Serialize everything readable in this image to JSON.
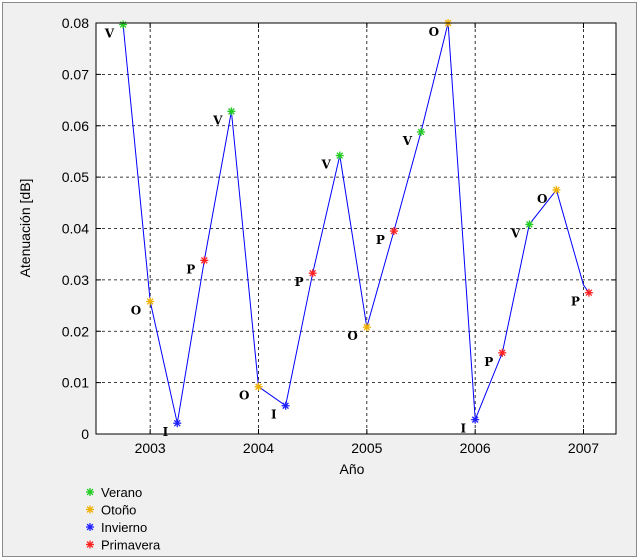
{
  "chart_data": {
    "type": "line",
    "xlabel": "Año",
    "ylabel": "Atenuación [dB]",
    "xlim": [
      2002.5,
      2007.3
    ],
    "ylim": [
      0,
      0.08
    ],
    "grid": true,
    "xticks": [
      2003,
      2004,
      2005,
      2006,
      2007
    ],
    "xtick_labels": [
      "2003",
      "2004",
      "2005",
      "2006",
      "2007"
    ],
    "yticks": [
      0,
      0.01,
      0.02,
      0.03,
      0.04,
      0.05,
      0.06,
      0.07,
      0.08
    ],
    "ytick_labels": [
      "0",
      "0.01",
      "0.02",
      "0.03",
      "0.04",
      "0.05",
      "0.06",
      "0.07",
      "0.08"
    ],
    "line_color": "#0000ff",
    "points": [
      {
        "x": 2002.75,
        "y": 0.0797,
        "season": "verano",
        "label": "V"
      },
      {
        "x": 2003.0,
        "y": 0.0258,
        "season": "otono",
        "label": "O"
      },
      {
        "x": 2003.25,
        "y": 0.0021,
        "season": "invierno",
        "label": "I"
      },
      {
        "x": 2003.5,
        "y": 0.0338,
        "season": "primavera",
        "label": "P"
      },
      {
        "x": 2003.75,
        "y": 0.0628,
        "season": "verano",
        "label": "V"
      },
      {
        "x": 2004.0,
        "y": 0.0092,
        "season": "otono",
        "label": "O"
      },
      {
        "x": 2004.25,
        "y": 0.0055,
        "season": "invierno",
        "label": "I"
      },
      {
        "x": 2004.5,
        "y": 0.0313,
        "season": "primavera",
        "label": "P"
      },
      {
        "x": 2004.75,
        "y": 0.0542,
        "season": "verano",
        "label": "V"
      },
      {
        "x": 2005.0,
        "y": 0.0208,
        "season": "otono",
        "label": "O"
      },
      {
        "x": 2005.25,
        "y": 0.0395,
        "season": "primavera",
        "label": "P"
      },
      {
        "x": 2005.5,
        "y": 0.0588,
        "season": "verano",
        "label": "V"
      },
      {
        "x": 2005.75,
        "y": 0.08,
        "season": "otono",
        "label": "O"
      },
      {
        "x": 2006.0,
        "y": 0.0028,
        "season": "invierno",
        "label": "I"
      },
      {
        "x": 2006.25,
        "y": 0.0158,
        "season": "primavera",
        "label": "P"
      },
      {
        "x": 2006.5,
        "y": 0.0408,
        "season": "verano",
        "label": "V"
      },
      {
        "x": 2006.75,
        "y": 0.0475,
        "season": "otono",
        "label": "O"
      },
      {
        "x": 2007.0,
        "y": 0.029,
        "season": "none",
        "label": ""
      },
      {
        "x": 2007.05,
        "y": 0.0275,
        "season": "primavera",
        "label": "P"
      }
    ],
    "seasons": {
      "verano": {
        "name": "Verano",
        "color": "#22cc22"
      },
      "otono": {
        "name": "Otoño",
        "color": "#f0b000"
      },
      "invierno": {
        "name": "Invierno",
        "color": "#2020ff"
      },
      "primavera": {
        "name": "Primavera",
        "color": "#ff2020"
      }
    },
    "legend": [
      "verano",
      "otono",
      "invierno",
      "primavera"
    ],
    "legend_position": "below-left"
  }
}
